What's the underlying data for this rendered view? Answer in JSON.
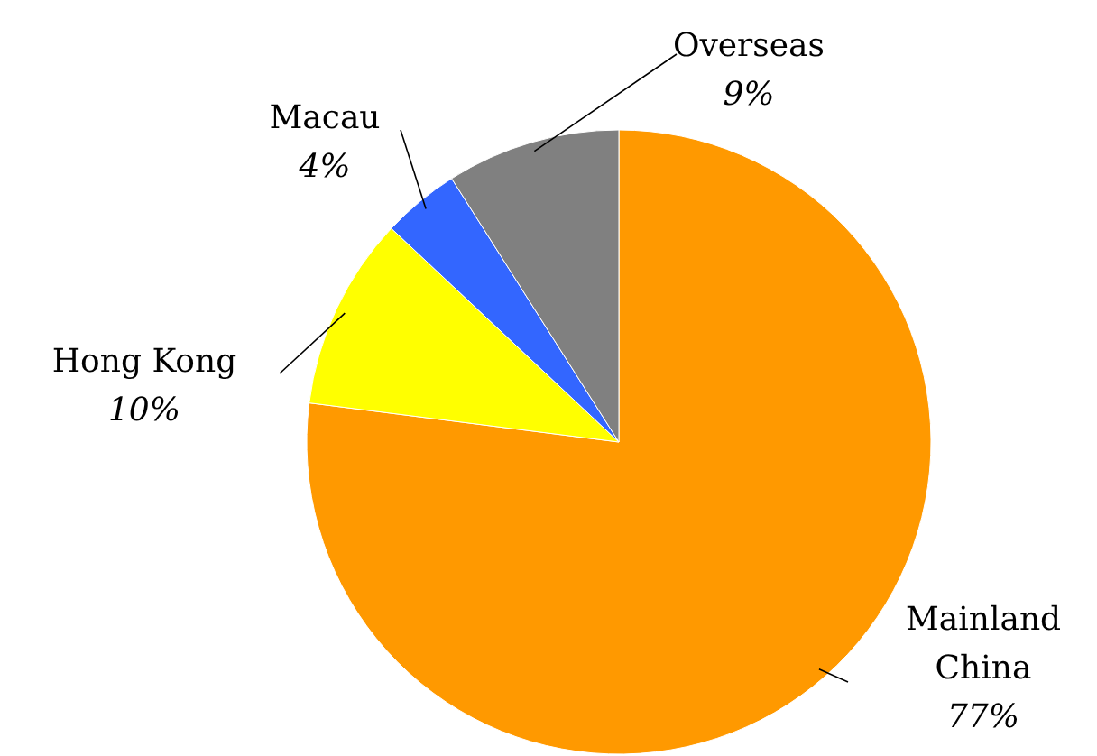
{
  "chart_data": {
    "type": "pie",
    "categories": [
      "Mainland\nChina",
      "Hong Kong",
      "Macau",
      "Overseas"
    ],
    "values": [
      77,
      10,
      4,
      9
    ],
    "colors": [
      "#ff9900",
      "#ffff00",
      "#3366ff",
      "#808080"
    ],
    "value_labels": [
      "77%",
      "10%",
      "4%",
      "9%"
    ]
  }
}
